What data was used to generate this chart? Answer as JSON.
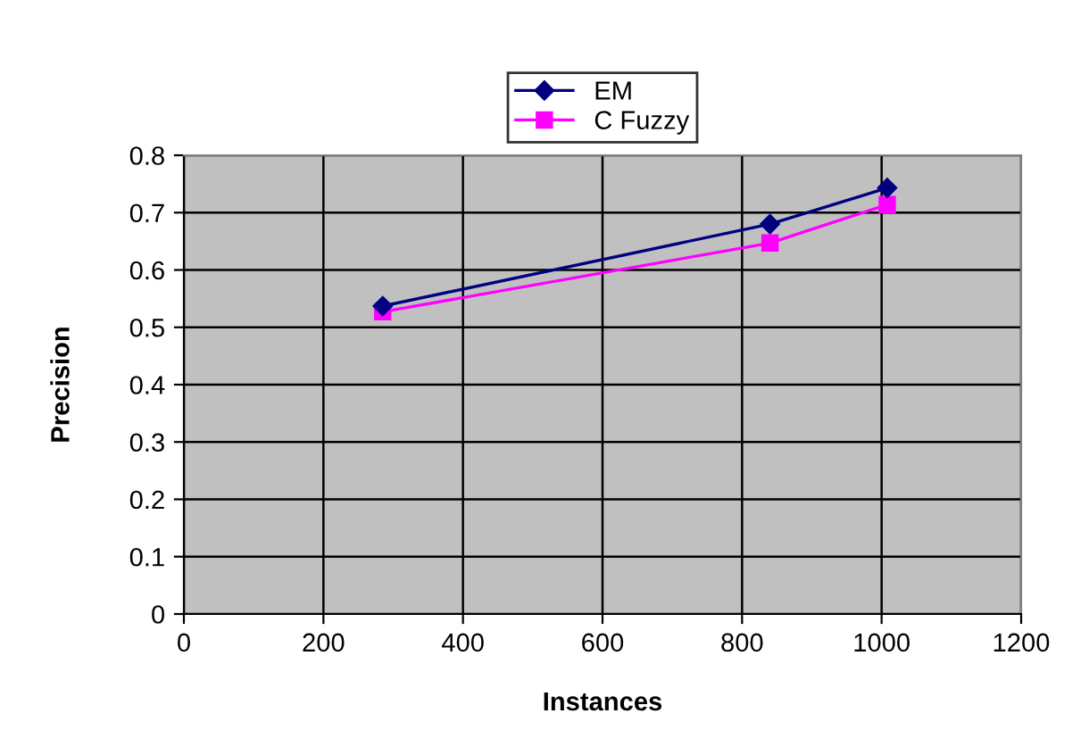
{
  "chart_data": {
    "type": "line",
    "xlabel": "Instances",
    "ylabel": "Precision",
    "x": [
      285,
      840,
      1008
    ],
    "series": [
      {
        "name": "EM",
        "color": "#000080",
        "marker": "diamond",
        "values": [
          0.537,
          0.68,
          0.743
        ]
      },
      {
        "name": "C Fuzzy",
        "color": "#ff00ff",
        "marker": "square",
        "values": [
          0.527,
          0.647,
          0.714
        ]
      }
    ],
    "xlim": [
      0,
      1200
    ],
    "xticks": [
      0,
      200,
      400,
      600,
      800,
      1000,
      1200
    ],
    "ylim": [
      0,
      0.8
    ],
    "yticks": [
      0,
      0.1,
      0.2,
      0.3,
      0.4,
      0.5,
      0.6,
      0.7,
      0.8
    ],
    "grid": true,
    "legend": "top",
    "line_style": "solid"
  }
}
